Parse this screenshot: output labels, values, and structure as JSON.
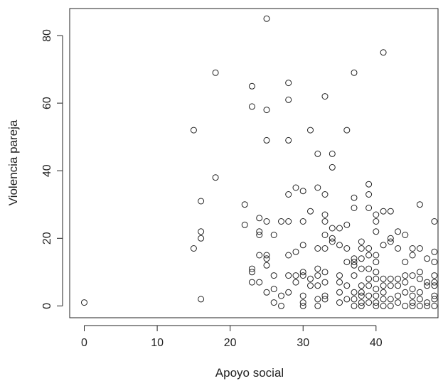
{
  "chart_data": {
    "type": "scatter",
    "title": "",
    "xlabel": "Apoyo social",
    "ylabel": "Violencia pareja",
    "xlim": [
      -2,
      48.5
    ],
    "ylim": [
      -3.5,
      88
    ],
    "x_ticks": [
      0,
      10,
      20,
      30,
      40
    ],
    "x_tick_labels": [
      "0",
      "10",
      "20",
      "30",
      "40"
    ],
    "y_ticks": [
      0,
      20,
      40,
      60,
      80
    ],
    "y_tick_labels": [
      "0",
      "20",
      "40",
      "60",
      "80"
    ],
    "grid": false,
    "marker": "open-circle",
    "marker_color": "#222222",
    "points": [
      [
        0,
        1
      ],
      [
        15,
        52
      ],
      [
        15,
        17
      ],
      [
        16,
        31
      ],
      [
        16,
        22
      ],
      [
        16,
        20
      ],
      [
        16,
        2
      ],
      [
        18,
        69
      ],
      [
        18,
        38
      ],
      [
        22,
        30
      ],
      [
        22,
        24
      ],
      [
        23,
        65
      ],
      [
        23,
        59
      ],
      [
        23,
        11
      ],
      [
        23,
        10
      ],
      [
        23,
        7
      ],
      [
        24,
        26
      ],
      [
        24,
        22
      ],
      [
        24,
        21
      ],
      [
        24,
        15
      ],
      [
        24,
        7
      ],
      [
        25,
        85
      ],
      [
        25,
        58
      ],
      [
        25,
        49
      ],
      [
        25,
        25
      ],
      [
        25,
        15
      ],
      [
        25,
        14
      ],
      [
        25,
        12
      ],
      [
        25,
        4
      ],
      [
        26,
        21
      ],
      [
        26,
        9
      ],
      [
        26,
        5
      ],
      [
        26,
        1
      ],
      [
        27,
        25
      ],
      [
        27,
        3
      ],
      [
        27,
        0
      ],
      [
        28,
        66
      ],
      [
        28,
        61
      ],
      [
        28,
        49
      ],
      [
        28,
        33
      ],
      [
        28,
        25
      ],
      [
        28,
        15
      ],
      [
        28,
        9
      ],
      [
        28,
        4
      ],
      [
        29,
        35
      ],
      [
        29,
        16
      ],
      [
        29,
        7
      ],
      [
        29,
        9
      ],
      [
        30,
        34
      ],
      [
        30,
        25
      ],
      [
        30,
        18
      ],
      [
        30,
        10
      ],
      [
        30,
        9
      ],
      [
        30,
        3
      ],
      [
        30,
        1
      ],
      [
        30,
        0
      ],
      [
        31,
        52
      ],
      [
        31,
        28
      ],
      [
        31,
        8
      ],
      [
        31,
        6
      ],
      [
        32,
        45
      ],
      [
        32,
        35
      ],
      [
        32,
        17
      ],
      [
        32,
        11
      ],
      [
        32,
        9
      ],
      [
        32,
        6
      ],
      [
        32,
        2
      ],
      [
        32,
        0
      ],
      [
        33,
        62
      ],
      [
        33,
        33
      ],
      [
        33,
        27
      ],
      [
        33,
        25
      ],
      [
        33,
        21
      ],
      [
        33,
        17
      ],
      [
        33,
        10
      ],
      [
        33,
        7
      ],
      [
        33,
        3
      ],
      [
        33,
        2
      ],
      [
        34,
        45
      ],
      [
        34,
        41
      ],
      [
        34,
        23
      ],
      [
        34,
        20
      ],
      [
        34,
        19
      ],
      [
        35,
        23
      ],
      [
        35,
        18
      ],
      [
        35,
        9
      ],
      [
        35,
        7
      ],
      [
        35,
        4
      ],
      [
        35,
        1
      ],
      [
        36,
        52
      ],
      [
        36,
        24
      ],
      [
        36,
        17
      ],
      [
        36,
        13
      ],
      [
        36,
        6
      ],
      [
        36,
        2
      ],
      [
        37,
        69
      ],
      [
        37,
        32
      ],
      [
        37,
        29
      ],
      [
        37,
        14
      ],
      [
        37,
        13
      ],
      [
        37,
        12
      ],
      [
        37,
        9
      ],
      [
        37,
        4
      ],
      [
        37,
        2
      ],
      [
        37,
        0
      ],
      [
        38,
        19
      ],
      [
        38,
        17
      ],
      [
        38,
        14
      ],
      [
        38,
        11
      ],
      [
        38,
        6
      ],
      [
        38,
        4
      ],
      [
        38,
        3
      ],
      [
        38,
        1
      ],
      [
        38,
        0
      ],
      [
        39,
        36
      ],
      [
        39,
        33
      ],
      [
        39,
        29
      ],
      [
        39,
        17
      ],
      [
        39,
        15
      ],
      [
        39,
        11
      ],
      [
        39,
        8
      ],
      [
        39,
        6
      ],
      [
        39,
        3
      ],
      [
        39,
        1
      ],
      [
        40,
        27
      ],
      [
        40,
        25
      ],
      [
        40,
        22
      ],
      [
        40,
        15
      ],
      [
        40,
        13
      ],
      [
        40,
        10
      ],
      [
        40,
        8
      ],
      [
        40,
        5
      ],
      [
        40,
        3
      ],
      [
        40,
        1
      ],
      [
        40,
        0
      ],
      [
        41,
        75
      ],
      [
        41,
        28
      ],
      [
        41,
        18
      ],
      [
        41,
        8
      ],
      [
        41,
        6
      ],
      [
        41,
        4
      ],
      [
        41,
        2
      ],
      [
        41,
        0
      ],
      [
        42,
        28
      ],
      [
        42,
        20
      ],
      [
        42,
        19
      ],
      [
        42,
        8
      ],
      [
        42,
        6
      ],
      [
        42,
        2
      ],
      [
        42,
        0
      ],
      [
        43,
        22
      ],
      [
        43,
        17
      ],
      [
        43,
        8
      ],
      [
        43,
        6
      ],
      [
        43,
        3
      ],
      [
        43,
        1
      ],
      [
        44,
        21
      ],
      [
        44,
        13
      ],
      [
        44,
        9
      ],
      [
        44,
        7
      ],
      [
        44,
        4
      ],
      [
        44,
        0
      ],
      [
        45,
        17
      ],
      [
        45,
        15
      ],
      [
        45,
        9
      ],
      [
        45,
        5
      ],
      [
        45,
        3
      ],
      [
        45,
        1
      ],
      [
        45,
        0
      ],
      [
        46,
        30
      ],
      [
        46,
        17
      ],
      [
        46,
        10
      ],
      [
        46,
        8
      ],
      [
        46,
        4
      ],
      [
        46,
        2
      ],
      [
        46,
        0
      ],
      [
        47,
        14
      ],
      [
        47,
        7
      ],
      [
        47,
        6
      ],
      [
        47,
        1
      ],
      [
        47,
        0
      ],
      [
        48,
        25
      ],
      [
        48,
        16
      ],
      [
        48,
        13
      ],
      [
        48,
        9
      ],
      [
        48,
        7
      ],
      [
        48,
        6
      ],
      [
        48,
        3
      ],
      [
        48,
        2
      ],
      [
        48,
        0
      ]
    ]
  }
}
